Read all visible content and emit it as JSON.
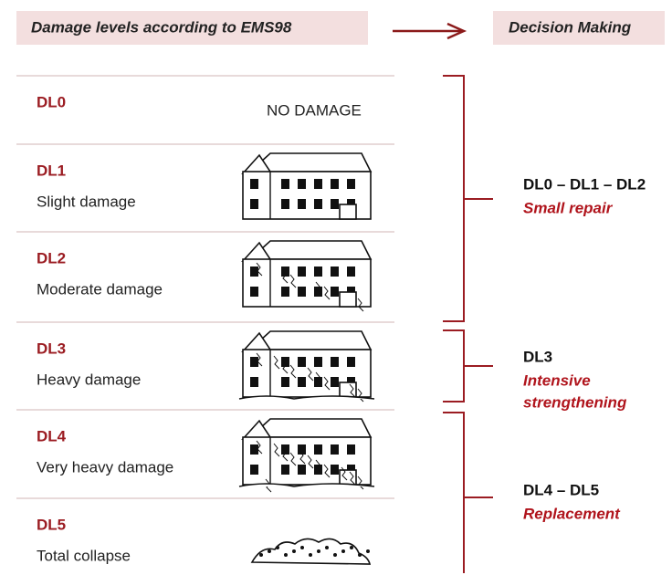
{
  "header": {
    "left": "Damage levels according to EMS98",
    "right": "Decision Making"
  },
  "levels": [
    {
      "code": "DL0",
      "label": "NO DAMAGE"
    },
    {
      "code": "DL1",
      "label": "Slight damage"
    },
    {
      "code": "DL2",
      "label": "Moderate damage"
    },
    {
      "code": "DL3",
      "label": "Heavy damage"
    },
    {
      "code": "DL4",
      "label": "Very heavy damage"
    },
    {
      "code": "DL5",
      "label": "Total collapse"
    }
  ],
  "decisions": [
    {
      "codes": "DL0 – DL1 – DL2",
      "action": [
        "Small repair"
      ]
    },
    {
      "codes": "DL3",
      "action": [
        "Intensive",
        "strengthening"
      ]
    },
    {
      "codes": "DL4 – DL5",
      "action": [
        "Replacement"
      ]
    }
  ]
}
